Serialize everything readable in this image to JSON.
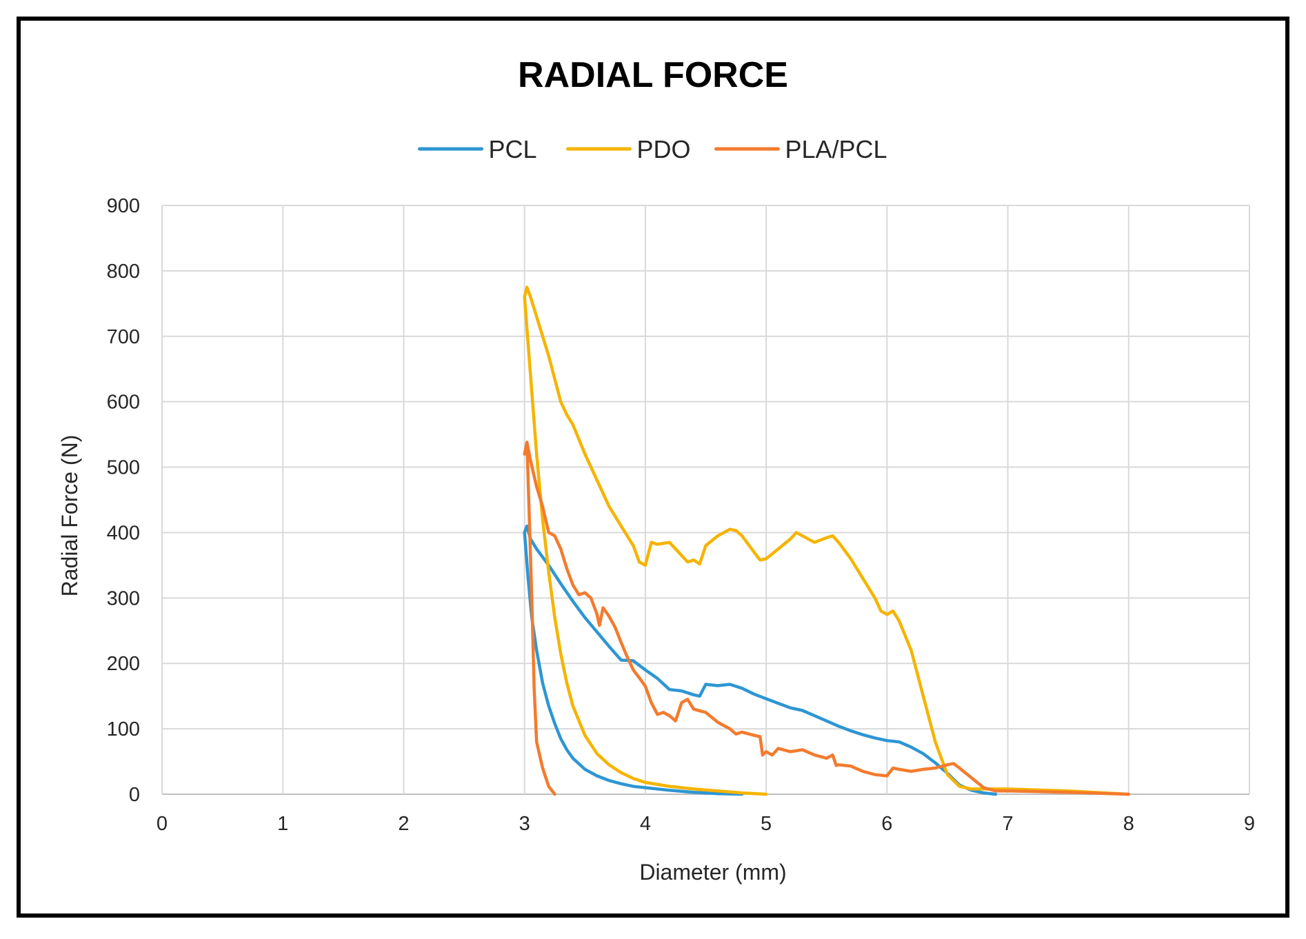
{
  "chart_data": {
    "type": "line",
    "title": "RADIAL FORCE",
    "xlabel": "Diameter (mm)",
    "ylabel": "Radial Force (N)",
    "xlim": [
      0,
      9
    ],
    "ylim": [
      0,
      900
    ],
    "xticks": [
      0,
      1,
      2,
      3,
      4,
      5,
      6,
      7,
      8,
      9
    ],
    "yticks": [
      0,
      100,
      200,
      300,
      400,
      500,
      600,
      700,
      800,
      900
    ],
    "grid": true,
    "legend_position": "top-center",
    "series": [
      {
        "name": "PCL",
        "color": "#2e96d3",
        "points": [
          [
            3.0,
            400
          ],
          [
            3.02,
            410
          ],
          [
            3.05,
            390
          ],
          [
            3.1,
            375
          ],
          [
            3.2,
            350
          ],
          [
            3.3,
            322
          ],
          [
            3.4,
            295
          ],
          [
            3.5,
            270
          ],
          [
            3.6,
            248
          ],
          [
            3.7,
            226
          ],
          [
            3.8,
            205
          ],
          [
            3.9,
            204
          ],
          [
            4.0,
            190
          ],
          [
            4.1,
            177
          ],
          [
            4.2,
            160
          ],
          [
            4.3,
            158
          ],
          [
            4.4,
            152
          ],
          [
            4.45,
            150
          ],
          [
            4.5,
            168
          ],
          [
            4.6,
            166
          ],
          [
            4.7,
            168
          ],
          [
            4.8,
            162
          ],
          [
            4.9,
            153
          ],
          [
            5.0,
            146
          ],
          [
            5.1,
            139
          ],
          [
            5.2,
            132
          ],
          [
            5.3,
            128
          ],
          [
            5.4,
            120
          ],
          [
            5.5,
            112
          ],
          [
            5.6,
            104
          ],
          [
            5.7,
            97
          ],
          [
            5.8,
            91
          ],
          [
            5.9,
            86
          ],
          [
            6.0,
            82
          ],
          [
            6.1,
            80
          ],
          [
            6.2,
            72
          ],
          [
            6.3,
            62
          ],
          [
            6.4,
            48
          ],
          [
            6.5,
            32
          ],
          [
            6.6,
            14
          ],
          [
            6.7,
            6
          ],
          [
            6.8,
            2
          ],
          [
            6.9,
            0
          ]
        ],
        "unloading_points": [
          [
            3.0,
            400
          ],
          [
            3.03,
            330
          ],
          [
            3.06,
            270
          ],
          [
            3.1,
            220
          ],
          [
            3.15,
            170
          ],
          [
            3.2,
            135
          ],
          [
            3.25,
            108
          ],
          [
            3.3,
            85
          ],
          [
            3.35,
            68
          ],
          [
            3.4,
            55
          ],
          [
            3.5,
            38
          ],
          [
            3.6,
            28
          ],
          [
            3.7,
            21
          ],
          [
            3.8,
            16
          ],
          [
            3.9,
            12
          ],
          [
            4.0,
            10
          ],
          [
            4.2,
            6
          ],
          [
            4.4,
            3
          ],
          [
            4.6,
            1
          ],
          [
            4.8,
            0
          ]
        ]
      },
      {
        "name": "PDO",
        "color": "#f5b400",
        "points": [
          [
            3.0,
            760
          ],
          [
            3.02,
            775
          ],
          [
            3.05,
            760
          ],
          [
            3.1,
            730
          ],
          [
            3.2,
            670
          ],
          [
            3.3,
            600
          ],
          [
            3.35,
            580
          ],
          [
            3.4,
            565
          ],
          [
            3.5,
            520
          ],
          [
            3.6,
            480
          ],
          [
            3.7,
            440
          ],
          [
            3.8,
            410
          ],
          [
            3.9,
            380
          ],
          [
            3.95,
            355
          ],
          [
            4.0,
            350
          ],
          [
            4.05,
            385
          ],
          [
            4.1,
            382
          ],
          [
            4.2,
            385
          ],
          [
            4.3,
            365
          ],
          [
            4.35,
            355
          ],
          [
            4.4,
            358
          ],
          [
            4.45,
            352
          ],
          [
            4.5,
            380
          ],
          [
            4.6,
            395
          ],
          [
            4.7,
            405
          ],
          [
            4.75,
            403
          ],
          [
            4.8,
            395
          ],
          [
            4.9,
            370
          ],
          [
            4.95,
            358
          ],
          [
            5.0,
            360
          ],
          [
            5.1,
            375
          ],
          [
            5.2,
            390
          ],
          [
            5.25,
            400
          ],
          [
            5.3,
            395
          ],
          [
            5.4,
            385
          ],
          [
            5.5,
            392
          ],
          [
            5.55,
            395
          ],
          [
            5.6,
            385
          ],
          [
            5.7,
            360
          ],
          [
            5.8,
            330
          ],
          [
            5.9,
            300
          ],
          [
            5.95,
            280
          ],
          [
            6.0,
            275
          ],
          [
            6.05,
            280
          ],
          [
            6.1,
            265
          ],
          [
            6.2,
            220
          ],
          [
            6.3,
            150
          ],
          [
            6.4,
            80
          ],
          [
            6.5,
            30
          ],
          [
            6.6,
            12
          ],
          [
            6.7,
            8
          ],
          [
            6.8,
            8
          ],
          [
            7.0,
            8
          ],
          [
            7.5,
            5
          ],
          [
            8.0,
            0
          ]
        ],
        "unloading_points": [
          [
            3.0,
            760
          ],
          [
            3.05,
            640
          ],
          [
            3.1,
            520
          ],
          [
            3.15,
            420
          ],
          [
            3.2,
            340
          ],
          [
            3.25,
            270
          ],
          [
            3.3,
            215
          ],
          [
            3.35,
            170
          ],
          [
            3.4,
            135
          ],
          [
            3.5,
            90
          ],
          [
            3.6,
            62
          ],
          [
            3.7,
            45
          ],
          [
            3.8,
            33
          ],
          [
            3.9,
            24
          ],
          [
            4.0,
            18
          ],
          [
            4.2,
            12
          ],
          [
            4.4,
            8
          ],
          [
            4.6,
            5
          ],
          [
            4.8,
            2
          ],
          [
            5.0,
            0
          ]
        ]
      },
      {
        "name": "PLA/PCL",
        "color": "#f37b2e",
        "points": [
          [
            3.0,
            520
          ],
          [
            3.02,
            538
          ],
          [
            3.05,
            510
          ],
          [
            3.1,
            470
          ],
          [
            3.15,
            440
          ],
          [
            3.2,
            400
          ],
          [
            3.25,
            395
          ],
          [
            3.3,
            375
          ],
          [
            3.35,
            345
          ],
          [
            3.4,
            320
          ],
          [
            3.45,
            305
          ],
          [
            3.5,
            308
          ],
          [
            3.55,
            300
          ],
          [
            3.6,
            275
          ],
          [
            3.62,
            258
          ],
          [
            3.65,
            285
          ],
          [
            3.7,
            272
          ],
          [
            3.75,
            255
          ],
          [
            3.8,
            232
          ],
          [
            3.85,
            210
          ],
          [
            3.9,
            190
          ],
          [
            3.95,
            178
          ],
          [
            4.0,
            165
          ],
          [
            4.05,
            140
          ],
          [
            4.1,
            122
          ],
          [
            4.15,
            125
          ],
          [
            4.2,
            120
          ],
          [
            4.25,
            112
          ],
          [
            4.3,
            140
          ],
          [
            4.35,
            145
          ],
          [
            4.4,
            130
          ],
          [
            4.5,
            125
          ],
          [
            4.6,
            110
          ],
          [
            4.7,
            100
          ],
          [
            4.75,
            92
          ],
          [
            4.8,
            95
          ],
          [
            4.9,
            90
          ],
          [
            4.95,
            88
          ],
          [
            4.97,
            60
          ],
          [
            5.0,
            65
          ],
          [
            5.05,
            60
          ],
          [
            5.1,
            70
          ],
          [
            5.2,
            65
          ],
          [
            5.3,
            68
          ],
          [
            5.4,
            60
          ],
          [
            5.5,
            55
          ],
          [
            5.55,
            60
          ],
          [
            5.58,
            44
          ],
          [
            5.6,
            45
          ],
          [
            5.7,
            43
          ],
          [
            5.8,
            35
          ],
          [
            5.9,
            30
          ],
          [
            6.0,
            28
          ],
          [
            6.05,
            40
          ],
          [
            6.1,
            38
          ],
          [
            6.2,
            35
          ],
          [
            6.3,
            38
          ],
          [
            6.4,
            40
          ],
          [
            6.5,
            45
          ],
          [
            6.55,
            47
          ],
          [
            6.6,
            40
          ],
          [
            6.7,
            25
          ],
          [
            6.8,
            10
          ],
          [
            6.9,
            5
          ],
          [
            7.0,
            5
          ],
          [
            7.5,
            3
          ],
          [
            8.0,
            0
          ]
        ],
        "unloading_points": [
          [
            3.02,
            538
          ],
          [
            3.04,
            420
          ],
          [
            3.06,
            300
          ],
          [
            3.08,
            160
          ],
          [
            3.1,
            80
          ],
          [
            3.15,
            40
          ],
          [
            3.2,
            12
          ],
          [
            3.25,
            0
          ]
        ]
      }
    ]
  }
}
